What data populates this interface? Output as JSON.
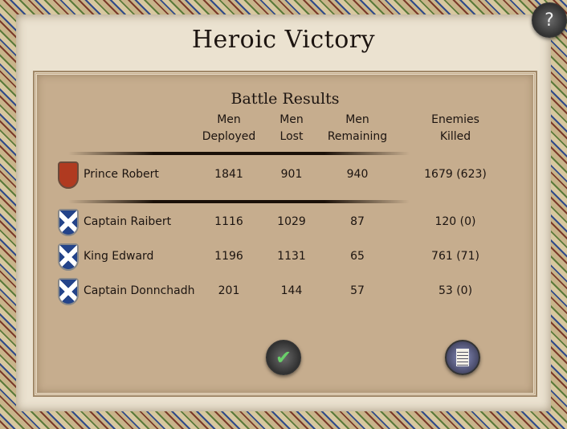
{
  "title": "Heroic Victory",
  "panel_title": "Battle Results",
  "headers": {
    "deployed": [
      "Men",
      "Deployed"
    ],
    "lost": [
      "Men",
      "Lost"
    ],
    "remaining": [
      "Men",
      "Remaining"
    ],
    "killed": [
      "Enemies",
      "Killed"
    ]
  },
  "rows": [
    {
      "name": "Prince Robert",
      "deployed": "1841",
      "lost": "901",
      "remaining": "940",
      "killed": "1679 (623)",
      "shield": "red-lions"
    },
    {
      "name": "Captain Raibert",
      "deployed": "1116",
      "lost": "1029",
      "remaining": "87",
      "killed": "120 (0)",
      "shield": "blue-saltire"
    },
    {
      "name": "King Edward",
      "deployed": "1196",
      "lost": "1131",
      "remaining": "65",
      "killed": "761 (71)",
      "shield": "blue-saltire"
    },
    {
      "name": "Captain Donnchadh",
      "deployed": "201",
      "lost": "144",
      "remaining": "57",
      "killed": "53 (0)",
      "shield": "blue-saltire"
    }
  ],
  "buttons": {
    "confirm": "checkmark-icon",
    "report": "scroll-icon",
    "help": "?"
  }
}
